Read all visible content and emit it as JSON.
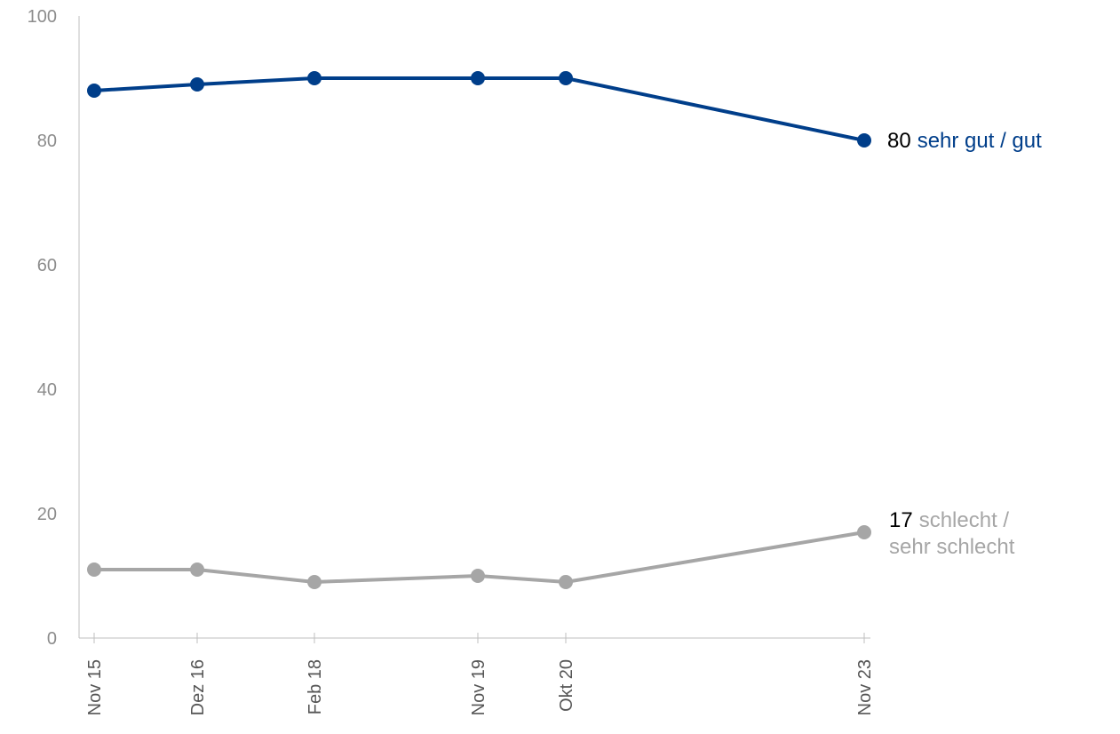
{
  "chart_data": {
    "type": "line",
    "categories": [
      "Nov 15",
      "Dez 16",
      "Feb 18",
      "Nov 19",
      "Okt 20",
      "Nov 23"
    ],
    "ylim": [
      0,
      100
    ],
    "yticks": [
      "0",
      "20",
      "40",
      "60",
      "80",
      "100"
    ],
    "grid": false,
    "series": [
      {
        "name": "sehr gut / gut",
        "values": [
          88,
          89,
          90,
          90,
          90,
          80
        ],
        "color": "#003e8a",
        "end_value_label": "80",
        "end_name_lines": [
          "sehr gut / gut"
        ]
      },
      {
        "name": "schlecht / sehr schlecht",
        "values": [
          11,
          11,
          9,
          10,
          9,
          17
        ],
        "color": "#a6a6a6",
        "end_value_label": "17",
        "end_name_lines": [
          "schlecht /",
          "sehr schlecht"
        ]
      }
    ],
    "colors": {
      "axis": "#bfbfbf",
      "tick_label": "#8c8c8c",
      "end_value": "#000000"
    }
  }
}
